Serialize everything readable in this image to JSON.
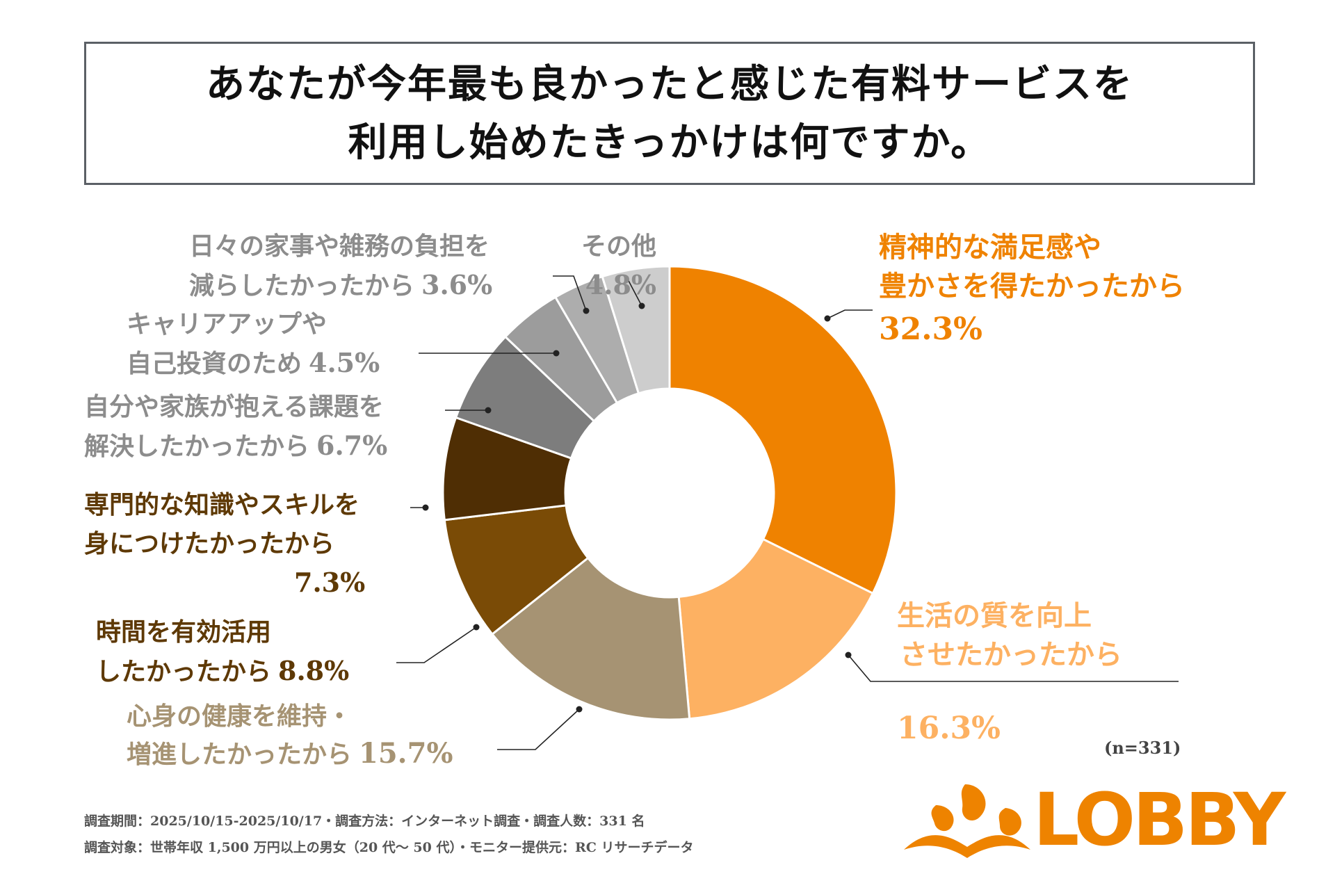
{
  "title": {
    "line1": "あなたが今年最も良かったと感じた有料サービスを",
    "line2": "利用し始めたきっかけは何ですか。"
  },
  "chart_data": {
    "type": "pie",
    "donut": true,
    "title": "あなたが今年最も良かったと感じた有料サービスを利用し始めたきっかけは何ですか。",
    "unit": "%",
    "categories": [
      "精神的な満足感や豊かさを得たかったから",
      "生活の質を向上させたかったから",
      "心身の健康を維持・増進したかったから",
      "時間を有効活用したかったから",
      "専門的な知識やスキルを身につけたかったから",
      "自分や家族が抱える課題を解決したかったから",
      "キャリアアップや自己投資のため",
      "日々の家事や雑務の負担を減らしたかったから",
      "その他"
    ],
    "values": [
      32.3,
      16.3,
      15.7,
      8.8,
      7.3,
      6.7,
      4.5,
      3.6,
      4.8
    ],
    "colors": [
      "#ef8200",
      "#fdb162",
      "#a69373",
      "#7a4b06",
      "#4f2e04",
      "#7d7d7d",
      "#9c9c9c",
      "#adadad",
      "#cdcdcd"
    ],
    "labels": [
      {
        "lines": [
          "精神的な満足感や",
          "豊かさを得たかったから"
        ],
        "value": "32.3%",
        "color": "#ef8200"
      },
      {
        "lines": [
          "生活の質を向上",
          "させたかったから"
        ],
        "value": "16.3%",
        "color": "#fdb162"
      },
      {
        "lines": [
          "心身の健康を維持・",
          "増進したかったから"
        ],
        "value": "15.7%",
        "color": "#a69373"
      },
      {
        "lines": [
          "時間を有効活用",
          "したかったから"
        ],
        "value": "8.8%",
        "color": "#5e3905"
      },
      {
        "lines": [
          "専門的な知識やスキルを",
          "身につけたかったから"
        ],
        "value": "7.3%",
        "color": "#5e3905"
      },
      {
        "lines": [
          "自分や家族が抱える課題を",
          "解決したかったから"
        ],
        "value": "6.7%",
        "color": "#8c8c8c"
      },
      {
        "lines": [
          "キャリアアップや",
          "自己投資のため"
        ],
        "value": "4.5%",
        "color": "#8c8c8c"
      },
      {
        "lines": [
          "日々の家事や雑務の負担を",
          "減らしたかったから"
        ],
        "value": "3.6%",
        "color": "#8c8c8c"
      },
      {
        "lines": [
          "その他"
        ],
        "value": "4.8%",
        "color": "#8c8c8c"
      }
    ]
  },
  "note": "(n=331)",
  "footer": {
    "line1": "調査期間：2025/10/15-2025/10/17・調査方法：インターネット調査・調査人数：331 名",
    "line2": "調査対象：世帯年収 1,500 万円以上の男女（20 代～ 50 代）・モニター提供元：RC リサーチデータ"
  },
  "logo": {
    "text": "LOBBY",
    "color": "#ee8300"
  }
}
